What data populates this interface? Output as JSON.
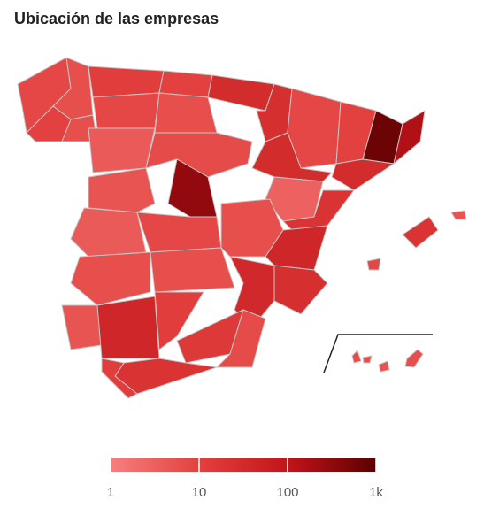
{
  "chart_data": {
    "type": "choropleth",
    "title": "Ubicación de las empresas",
    "values": [
      8,
      6,
      10,
      6,
      12,
      10,
      30,
      25,
      8,
      6,
      4,
      7,
      8,
      30,
      3,
      10,
      700,
      150,
      30,
      5,
      300,
      8,
      4,
      6,
      6,
      6,
      20,
      40,
      25,
      35,
      5,
      40,
      12,
      15,
      7,
      20,
      12,
      20,
      5,
      8,
      6,
      5,
      7,
      6
    ],
    "colorscale": {
      "log": true,
      "range": [
        1,
        1000
      ],
      "ticks": [
        1,
        10,
        100,
        {
          "value": 1000,
          "label": "1k"
        }
      ],
      "colors": [
        "#f77f7f",
        "#e2413f",
        "#c3141a",
        "#5c0000"
      ]
    }
  }
}
